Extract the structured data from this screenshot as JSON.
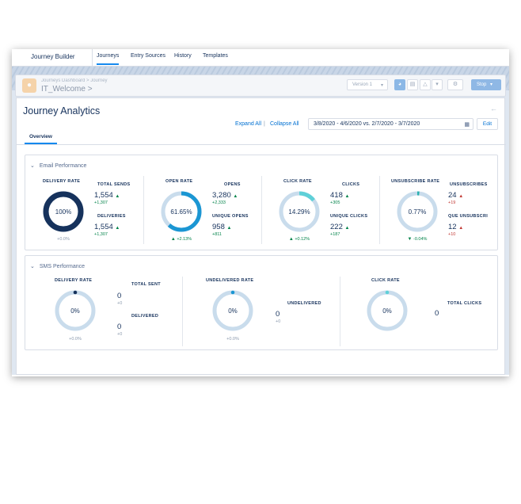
{
  "nav": {
    "app_name": "Journey Builder",
    "tabs": [
      "Journeys",
      "Entry Sources",
      "History",
      "Templates"
    ]
  },
  "header": {
    "breadcrumb": "Journeys Dashboard  >  Journey",
    "journey_name": "IT_Welcome  >",
    "version": "Version 1",
    "stop": "Stop"
  },
  "analytics": {
    "title": "Journey Analytics",
    "expand_all": "Expand All",
    "separator": "|",
    "collapse_all": "Collapse All",
    "date_range": "3/8/2020 - 4/6/2020 vs. 2/7/2020 - 3/7/2020",
    "edit": "Edit",
    "tab_overview": "Overview"
  },
  "email": {
    "section_title": "Email Performance",
    "delivery_rate": {
      "label": "DELIVERY RATE",
      "value": "100%",
      "fraction": 1.0,
      "delta": "+0.0%",
      "color": "#16325c"
    },
    "total_sends": {
      "label": "TOTAL SENDS",
      "value": "1,554",
      "delta": "+1,307"
    },
    "deliveries": {
      "label": "DELIVERIES",
      "value": "1,554",
      "delta": "+1,307"
    },
    "open_rate": {
      "label": "OPEN RATE",
      "value": "61.65%",
      "fraction": 0.6165,
      "delta": "+2.13%",
      "color": "#1b96d3"
    },
    "opens": {
      "label": "OPENS",
      "value": "3,280",
      "delta": "+2,333"
    },
    "unique_opens": {
      "label": "UNIQUE OPENS",
      "value": "958",
      "delta": "+811"
    },
    "click_rate": {
      "label": "CLICK RATE",
      "value": "14.29%",
      "fraction": 0.1429,
      "delta": "+0.12%",
      "color": "#5fd0d8"
    },
    "clicks": {
      "label": "CLICKS",
      "value": "418",
      "delta": "+305"
    },
    "unique_clicks": {
      "label": "UNIQUE CLICKS",
      "value": "222",
      "delta": "+187"
    },
    "unsub_rate": {
      "label": "UNSUBSCRIBE RATE",
      "value": "0.77%",
      "fraction": 0.0077,
      "delta": "-0.04%",
      "color": "#2ab0b0"
    },
    "unsubscribes": {
      "label": "UNSUBSCRIBES",
      "value": "24",
      "delta": "+19"
    },
    "unique_unsubs": {
      "label": "QUE UNSUBSCRI",
      "value": "12",
      "delta": "+10"
    }
  },
  "sms": {
    "section_title": "SMS Performance",
    "delivery_rate": {
      "label": "DELIVERY RATE",
      "value": "0%",
      "fraction": 0.0,
      "delta": "+0.0%",
      "dot_color": "#16325c"
    },
    "total_sent": {
      "label": "TOTAL SENT",
      "value": "0",
      "delta": "+0"
    },
    "delivered": {
      "label": "DELIVERED",
      "value": "0",
      "delta": "+0"
    },
    "undelivered_rate": {
      "label": "UNDELIVERED RATE",
      "value": "0%",
      "fraction": 0.0,
      "delta": "+0.0%",
      "dot_color": "#1b96d3"
    },
    "undelivered": {
      "label": "UNDELIVERED",
      "value": "0",
      "delta": "+0"
    },
    "click_rate": {
      "label": "CLICK RATE",
      "value": "0%",
      "fraction": 0.0,
      "dot_color": "#5fd0d8"
    },
    "total_clicks": {
      "label": "TOTAL CLICKS",
      "value": "0"
    }
  },
  "colors": {
    "track": "#c9dcec",
    "accent": "#1589ee",
    "link": "#0070d2"
  }
}
